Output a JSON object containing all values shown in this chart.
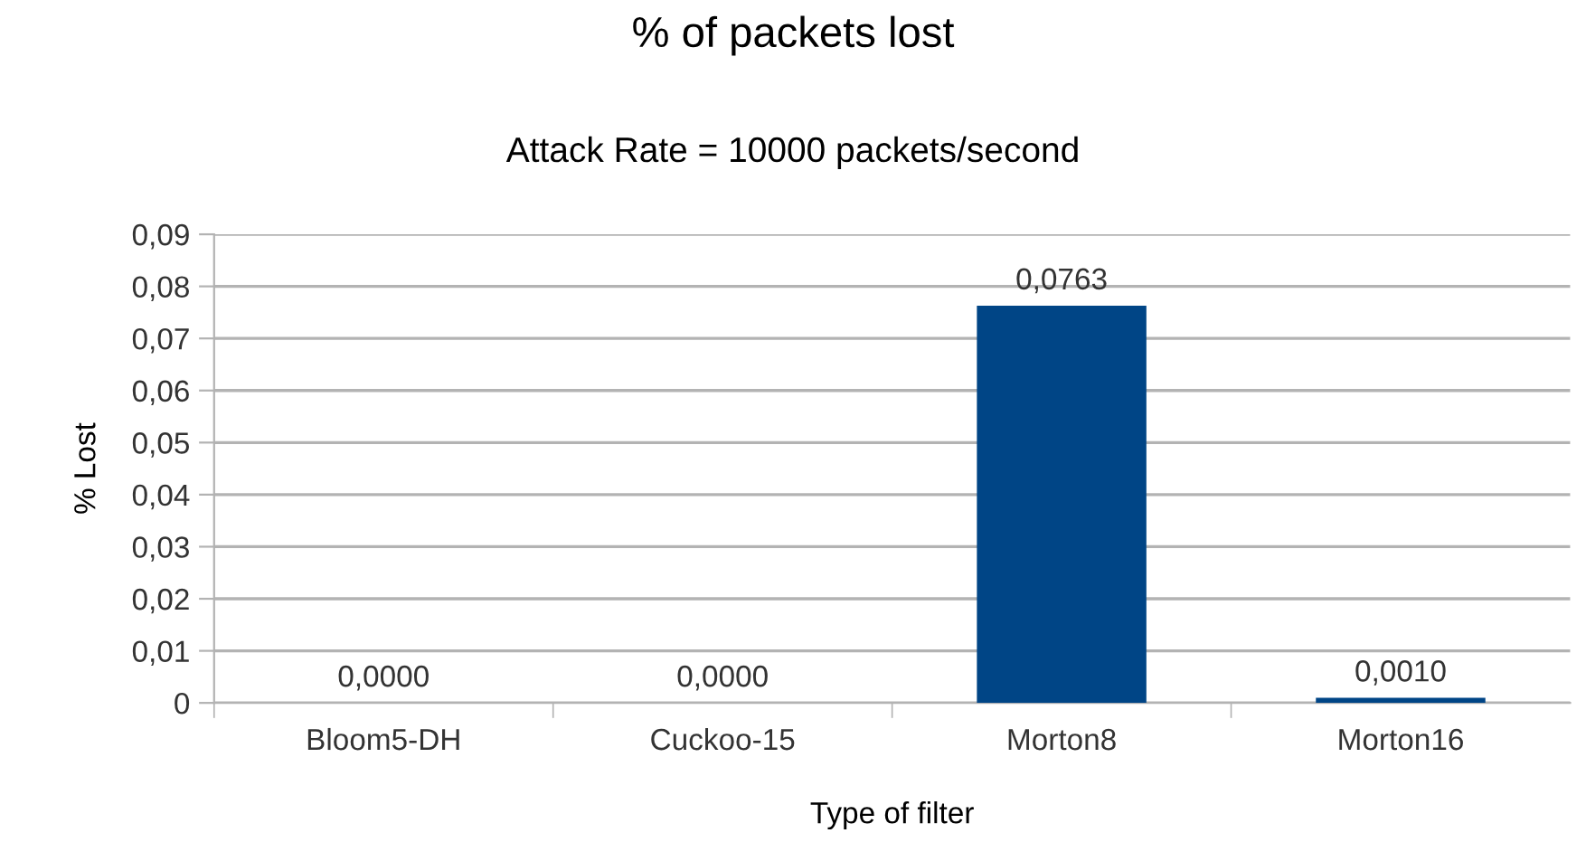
{
  "chart_data": {
    "type": "bar",
    "title": "% of packets lost",
    "subtitle": "Attack Rate = 10000 packets/second",
    "xlabel": "Type of filter",
    "ylabel": "% Lost",
    "categories": [
      "Bloom5-DH",
      "Cuckoo-15",
      "Morton8",
      "Morton16"
    ],
    "values": [
      0,
      0,
      0.0763,
      0.001
    ],
    "value_labels": [
      "0,0000",
      "0,0000",
      "0,0763",
      "0,0010"
    ],
    "color": "#004586",
    "ylim": [
      0,
      0.09
    ],
    "yticks": [
      0,
      {
        "value": 0.01,
        "label": "0,01"
      },
      {
        "value": 0.02,
        "label": "0,02"
      },
      {
        "value": 0.03,
        "label": "0,03"
      },
      {
        "value": 0.04,
        "label": "0,04"
      },
      {
        "value": 0.05,
        "label": "0,05"
      },
      {
        "value": 0.06,
        "label": "0,06"
      },
      {
        "value": 0.07,
        "label": "0,07"
      },
      {
        "value": 0.08,
        "label": "0,08"
      },
      {
        "value": 0.09,
        "label": "0,09"
      }
    ],
    "grid": "y",
    "legend": false
  }
}
